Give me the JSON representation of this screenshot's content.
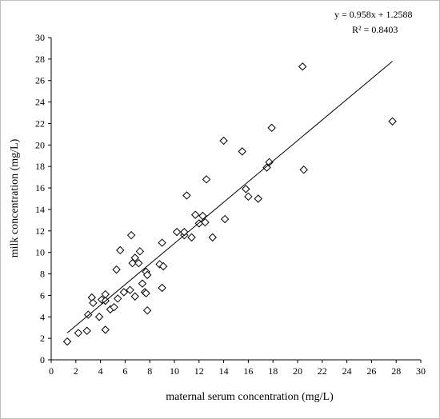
{
  "chart_data": {
    "type": "scatter",
    "title": "",
    "xlabel": "maternal serum concentration (mg/L)",
    "ylabel": "milk concentration (mg/L)",
    "xlim": [
      0,
      30
    ],
    "ylim": [
      0,
      30
    ],
    "xticks": [
      0,
      2,
      4,
      6,
      8,
      10,
      12,
      14,
      16,
      18,
      20,
      22,
      24,
      26,
      28,
      30
    ],
    "yticks": [
      0,
      2,
      4,
      6,
      8,
      10,
      12,
      14,
      16,
      18,
      20,
      22,
      24,
      26,
      28,
      30
    ],
    "grid": false,
    "marker": "open-diamond",
    "annotations": {
      "equation": "y = 0.958x + 1.2588",
      "r_squared": "R² = 0.8403"
    },
    "trendline": {
      "slope": 0.958,
      "intercept": 1.2588,
      "x_range": [
        1.3,
        27.7
      ]
    },
    "points": [
      [
        1.3,
        1.7
      ],
      [
        2.2,
        2.5
      ],
      [
        2.9,
        2.7
      ],
      [
        3.0,
        4.2
      ],
      [
        3.3,
        5.8
      ],
      [
        3.4,
        5.3
      ],
      [
        3.9,
        4.0
      ],
      [
        4.1,
        5.6
      ],
      [
        4.4,
        5.5
      ],
      [
        4.4,
        6.1
      ],
      [
        4.4,
        2.8
      ],
      [
        4.8,
        4.7
      ],
      [
        5.1,
        4.9
      ],
      [
        5.3,
        8.4
      ],
      [
        5.4,
        5.7
      ],
      [
        5.6,
        10.2
      ],
      [
        5.9,
        6.3
      ],
      [
        6.4,
        6.5
      ],
      [
        6.5,
        11.6
      ],
      [
        6.6,
        9.0
      ],
      [
        6.8,
        5.9
      ],
      [
        6.8,
        9.5
      ],
      [
        7.1,
        9.0
      ],
      [
        7.2,
        10.1
      ],
      [
        7.4,
        7.1
      ],
      [
        7.6,
        6.3
      ],
      [
        7.7,
        6.2
      ],
      [
        7.7,
        8.2
      ],
      [
        7.8,
        7.9
      ],
      [
        7.8,
        4.6
      ],
      [
        8.8,
        8.9
      ],
      [
        9.0,
        10.9
      ],
      [
        9.0,
        6.7
      ],
      [
        9.1,
        8.7
      ],
      [
        10.2,
        11.9
      ],
      [
        10.8,
        11.6
      ],
      [
        10.8,
        11.9
      ],
      [
        11.0,
        15.3
      ],
      [
        11.4,
        11.4
      ],
      [
        11.7,
        13.5
      ],
      [
        12.0,
        12.7
      ],
      [
        12.3,
        13.4
      ],
      [
        12.5,
        12.8
      ],
      [
        12.6,
        16.8
      ],
      [
        13.1,
        11.4
      ],
      [
        14.0,
        20.4
      ],
      [
        14.1,
        13.1
      ],
      [
        15.5,
        19.4
      ],
      [
        15.8,
        15.9
      ],
      [
        16.0,
        15.2
      ],
      [
        16.8,
        15.0
      ],
      [
        17.5,
        17.9
      ],
      [
        17.7,
        18.4
      ],
      [
        17.9,
        21.6
      ],
      [
        20.4,
        27.3
      ],
      [
        20.5,
        17.7
      ],
      [
        27.7,
        22.2
      ]
    ]
  }
}
